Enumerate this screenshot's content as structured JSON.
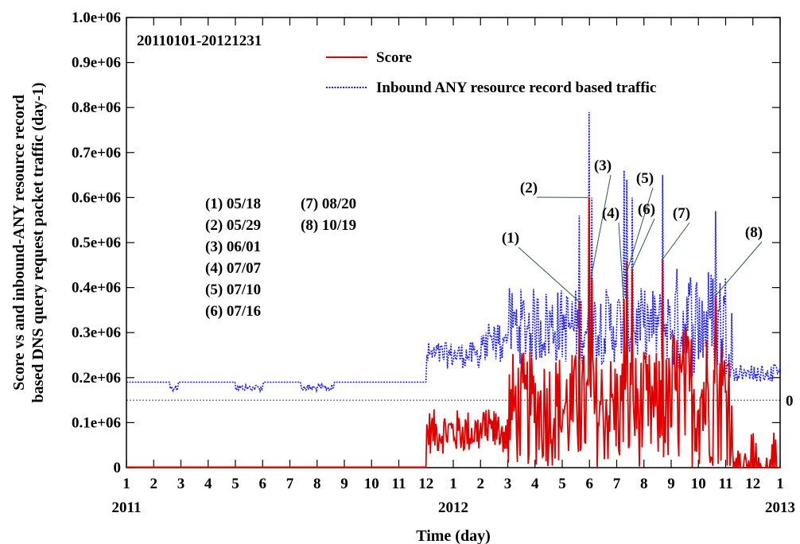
{
  "chart_data": {
    "type": "line",
    "date_range_label": "20110101-20121231",
    "xlabel": "Time (day)",
    "ylabel_line1": "Score vs and inbound-ANY resource record",
    "ylabel_line2": "based DNS query request packet traffic (day-1)",
    "ylim": [
      0,
      1000000
    ],
    "y_ticks": [
      "0",
      "0.1e+06",
      "0.2e+06",
      "0.3e+06",
      "0.4e+06",
      "0.5e+06",
      "0.6e+06",
      "0.7e+06",
      "0.8e+06",
      "0.9e+06",
      "1.0e+06"
    ],
    "right_axis_label": "0",
    "right_zero_value": 150000,
    "x_month_ticks": [
      "1",
      "2",
      "3",
      "4",
      "5",
      "6",
      "7",
      "8",
      "9",
      "10",
      "11",
      "12",
      "1",
      "2",
      "3",
      "4",
      "5",
      "6",
      "7",
      "8",
      "9",
      "10",
      "11",
      "12",
      "1"
    ],
    "x_year_labels": [
      "2011",
      "2012",
      "2013"
    ],
    "legend_position": "top-center",
    "series": [
      {
        "name": "Score",
        "color": "#e00000",
        "style": "solid"
      },
      {
        "name": "Inbound ANY resource record based traffic",
        "color": "#1a1aff",
        "style": "dotted"
      }
    ],
    "event_list": [
      [
        "(1) 05/18",
        "(7) 08/20"
      ],
      [
        "(2) 05/29",
        "(8) 10/19"
      ],
      [
        "(3) 06/01",
        ""
      ],
      [
        "(4) 07/07",
        ""
      ],
      [
        "(5) 07/10",
        ""
      ],
      [
        "(6) 07/16",
        ""
      ]
    ],
    "events": [
      {
        "label": "(1)",
        "month_index": 16.6,
        "value": 370000
      },
      {
        "label": "(2)",
        "month_index": 16.95,
        "value": 600000
      },
      {
        "label": "(3)",
        "month_index": 17.05,
        "value": 420000
      },
      {
        "label": "(4)",
        "month_index": 18.25,
        "value": 375000
      },
      {
        "label": "(5)",
        "month_index": 18.35,
        "value": 430000
      },
      {
        "label": "(6)",
        "month_index": 18.55,
        "value": 440000
      },
      {
        "label": "(7)",
        "month_index": 19.65,
        "value": 460000
      },
      {
        "label": "(8)",
        "month_index": 21.6,
        "value": 380000
      }
    ]
  }
}
